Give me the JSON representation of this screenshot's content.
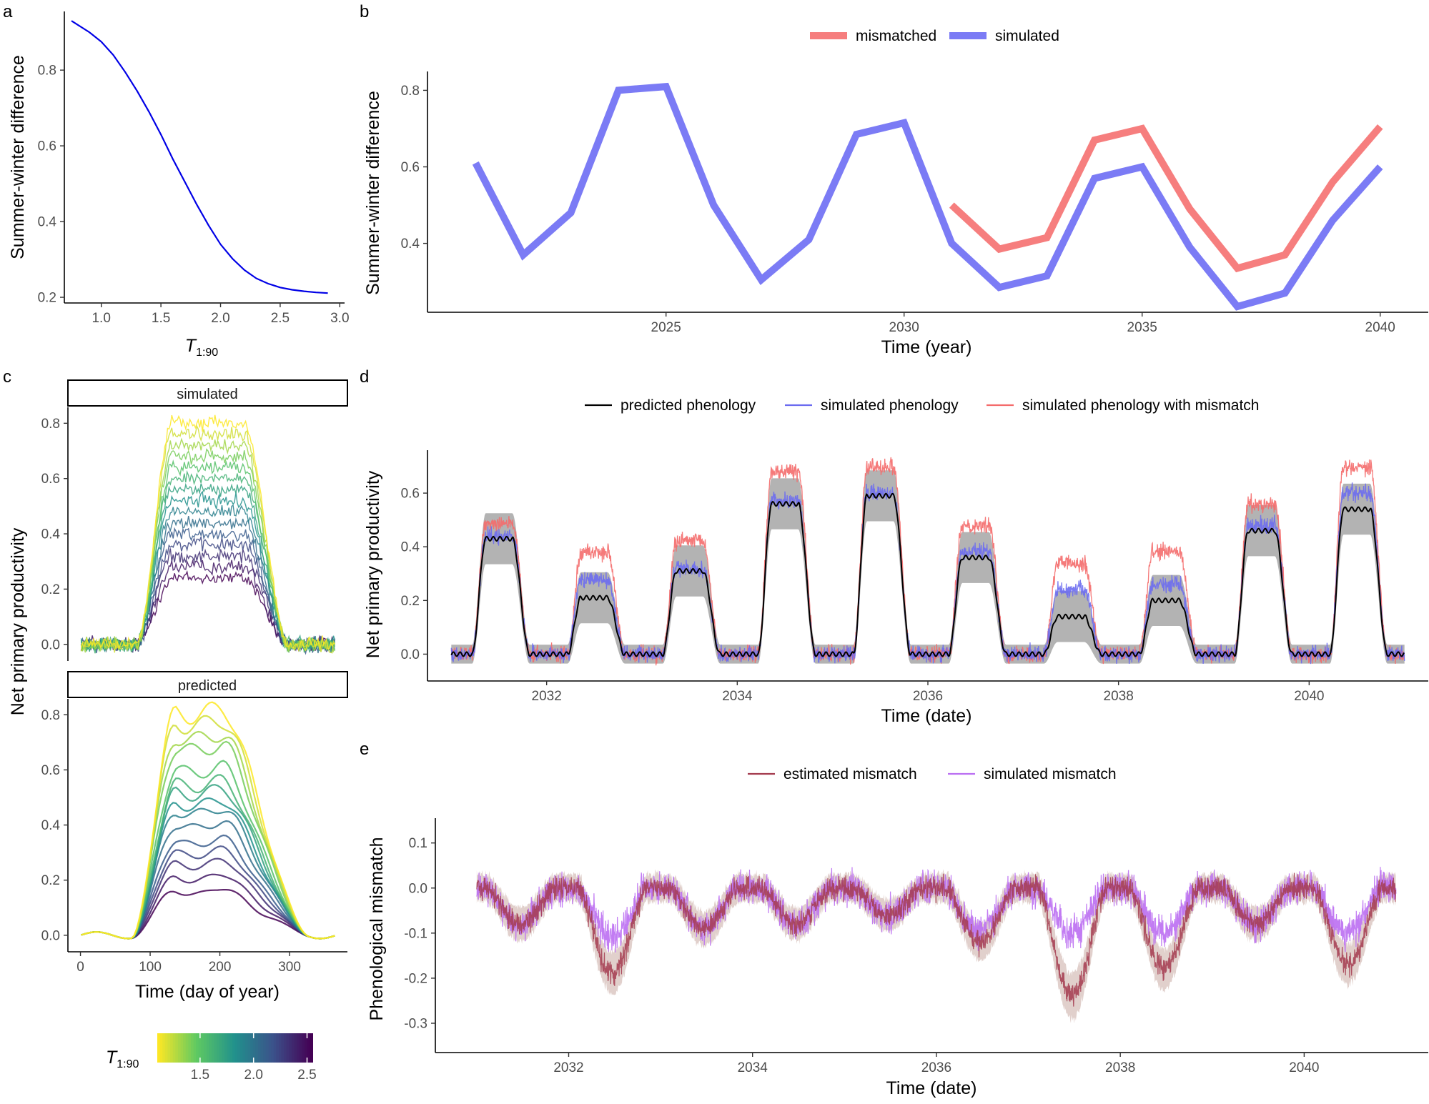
{
  "panels": {
    "a": {
      "letter": "a"
    },
    "b": {
      "letter": "b"
    },
    "c": {
      "letter": "c"
    },
    "d": {
      "letter": "d"
    },
    "e": {
      "letter": "e"
    }
  },
  "colors": {
    "blue_line": "#0000e6",
    "mismatched": "#f67e7e",
    "simulated": "#7b7bf5",
    "predicted_phenology": "#000000",
    "simulated_phenology": "#6b6bf0",
    "simulated_phenology_mismatch": "#f46b6b",
    "ribbon": "#a6a6a6",
    "estimated_mismatch": "#a33a4e",
    "estimated_ribbon": "#c9a9a2",
    "simulated_mismatch": "#bb6ef2",
    "viridis": [
      "#fde725",
      "#5ec962",
      "#21918c",
      "#3b528b",
      "#440154"
    ]
  },
  "chart_data": [
    {
      "id": "a",
      "type": "line",
      "title": "",
      "xlabel_main": "T",
      "xlabel_sub": "1:90",
      "ylabel": "Summer-winter difference",
      "xlim": [
        0.69,
        3.04
      ],
      "ylim": [
        0.185,
        0.955
      ],
      "xticks": [
        "1.0",
        "1.5",
        "2.0",
        "2.5",
        "3.0"
      ],
      "yticks": [
        "0.2",
        "0.4",
        "0.6",
        "0.8"
      ],
      "x": [
        0.75,
        0.9,
        1.0,
        1.1,
        1.2,
        1.3,
        1.4,
        1.5,
        1.6,
        1.7,
        1.8,
        1.9,
        2.0,
        2.1,
        2.2,
        2.3,
        2.4,
        2.5,
        2.6,
        2.7,
        2.8,
        2.9
      ],
      "y": [
        0.93,
        0.9,
        0.875,
        0.84,
        0.795,
        0.745,
        0.69,
        0.63,
        0.565,
        0.505,
        0.445,
        0.39,
        0.34,
        0.302,
        0.272,
        0.25,
        0.236,
        0.226,
        0.22,
        0.216,
        0.213,
        0.211
      ]
    },
    {
      "id": "b",
      "type": "line",
      "title": "",
      "xlabel": "Time (year)",
      "ylabel": "Summer-winter difference",
      "xlim": [
        2020.5,
        2040.5
      ],
      "ylim": [
        0.22,
        0.84
      ],
      "xticks": [
        "2025",
        "2030",
        "2035",
        "2040"
      ],
      "yticks": [
        "0.4",
        "0.6",
        "0.8"
      ],
      "legend_position": "top",
      "series": [
        {
          "name": "mismatched",
          "x": [
            2031,
            2032,
            2033,
            2034,
            2035,
            2036,
            2037,
            2038,
            2039,
            2040
          ],
          "values": [
            0.5,
            0.385,
            0.415,
            0.67,
            0.7,
            0.49,
            0.335,
            0.37,
            0.56,
            0.705
          ]
        },
        {
          "name": "simulated",
          "x": [
            2021,
            2022,
            2023,
            2024,
            2025,
            2026,
            2027,
            2028,
            2029,
            2030,
            2031,
            2032,
            2033,
            2034,
            2035,
            2036,
            2037,
            2038,
            2039,
            2040
          ],
          "values": [
            0.61,
            0.37,
            0.48,
            0.8,
            0.81,
            0.5,
            0.305,
            0.41,
            0.685,
            0.715,
            0.4,
            0.285,
            0.315,
            0.57,
            0.6,
            0.39,
            0.235,
            0.27,
            0.46,
            0.6
          ]
        }
      ]
    },
    {
      "id": "c",
      "type": "line",
      "title": "",
      "xlabel": "Time (day of year)",
      "ylabel": "Net primary productivity",
      "facets": [
        "simulated",
        "predicted"
      ],
      "xlim": [
        -18,
        383
      ],
      "ylim": [
        -0.06,
        0.85
      ],
      "xticks": [
        "0",
        "100",
        "200",
        "300"
      ],
      "yticks": [
        "0.0",
        "0.2",
        "0.4",
        "0.6",
        "0.8"
      ],
      "color_scale": {
        "title_main": "T",
        "title_sub": "1:90",
        "range": [
          1.1,
          2.55
        ],
        "ticks": [
          "1.5",
          "2.0",
          "2.5"
        ]
      },
      "predicted_peaks": [
        0.81,
        0.77,
        0.72,
        0.68,
        0.6,
        0.55,
        0.52,
        0.48,
        0.45,
        0.4,
        0.34,
        0.3,
        0.26,
        0.21,
        0.16
      ],
      "simulated_peaks": [
        0.8,
        0.76,
        0.72,
        0.68,
        0.64,
        0.6,
        0.56,
        0.52,
        0.48,
        0.44,
        0.4,
        0.36,
        0.32,
        0.28,
        0.24
      ]
    },
    {
      "id": "d",
      "type": "line",
      "title": "",
      "xlabel": "Time (date)",
      "ylabel": "Net primary productivity",
      "xlim": [
        2030.75,
        2041.25
      ],
      "ylim": [
        -0.1,
        0.76
      ],
      "xticks": [
        "2032",
        "2034",
        "2036",
        "2038",
        "2040"
      ],
      "yticks": [
        "0.0",
        "0.2",
        "0.4",
        "0.6"
      ],
      "legend_position": "top",
      "series": [
        {
          "name": "predicted phenology",
          "yearly_peaks": [
            0.43,
            0.21,
            0.31,
            0.56,
            0.59,
            0.36,
            0.14,
            0.2,
            0.46,
            0.54
          ]
        },
        {
          "name": "simulated phenology",
          "yearly_peaks": [
            0.44,
            0.28,
            0.32,
            0.57,
            0.6,
            0.38,
            0.24,
            0.26,
            0.48,
            0.6
          ]
        },
        {
          "name": "simulated phenology with mismatch",
          "yearly_peaks": [
            0.49,
            0.38,
            0.42,
            0.68,
            0.7,
            0.48,
            0.34,
            0.38,
            0.56,
            0.7
          ]
        }
      ],
      "years": [
        2031,
        2032,
        2033,
        2034,
        2035,
        2036,
        2037,
        2038,
        2039,
        2040
      ]
    },
    {
      "id": "e",
      "type": "line",
      "title": "",
      "xlabel": "Time (date)",
      "ylabel": "Phenological mismatch",
      "xlim": [
        2030.55,
        2041.35
      ],
      "ylim": [
        -0.365,
        0.155
      ],
      "xticks": [
        "2032",
        "2034",
        "2036",
        "2038",
        "2040"
      ],
      "yticks": [
        "0.1",
        "0.0",
        "-0.1",
        "-0.2",
        "-0.3"
      ],
      "legend_position": "top",
      "series": [
        {
          "name": "estimated mismatch",
          "yearly_troughs": [
            -0.08,
            -0.19,
            -0.09,
            -0.08,
            -0.06,
            -0.12,
            -0.24,
            -0.18,
            -0.08,
            -0.17
          ]
        },
        {
          "name": "simulated mismatch",
          "yearly_troughs": [
            -0.08,
            -0.11,
            -0.09,
            -0.08,
            -0.06,
            -0.1,
            -0.1,
            -0.1,
            -0.08,
            -0.1
          ]
        }
      ],
      "years": [
        2031,
        2032,
        2033,
        2034,
        2035,
        2036,
        2037,
        2038,
        2039,
        2040
      ]
    }
  ]
}
